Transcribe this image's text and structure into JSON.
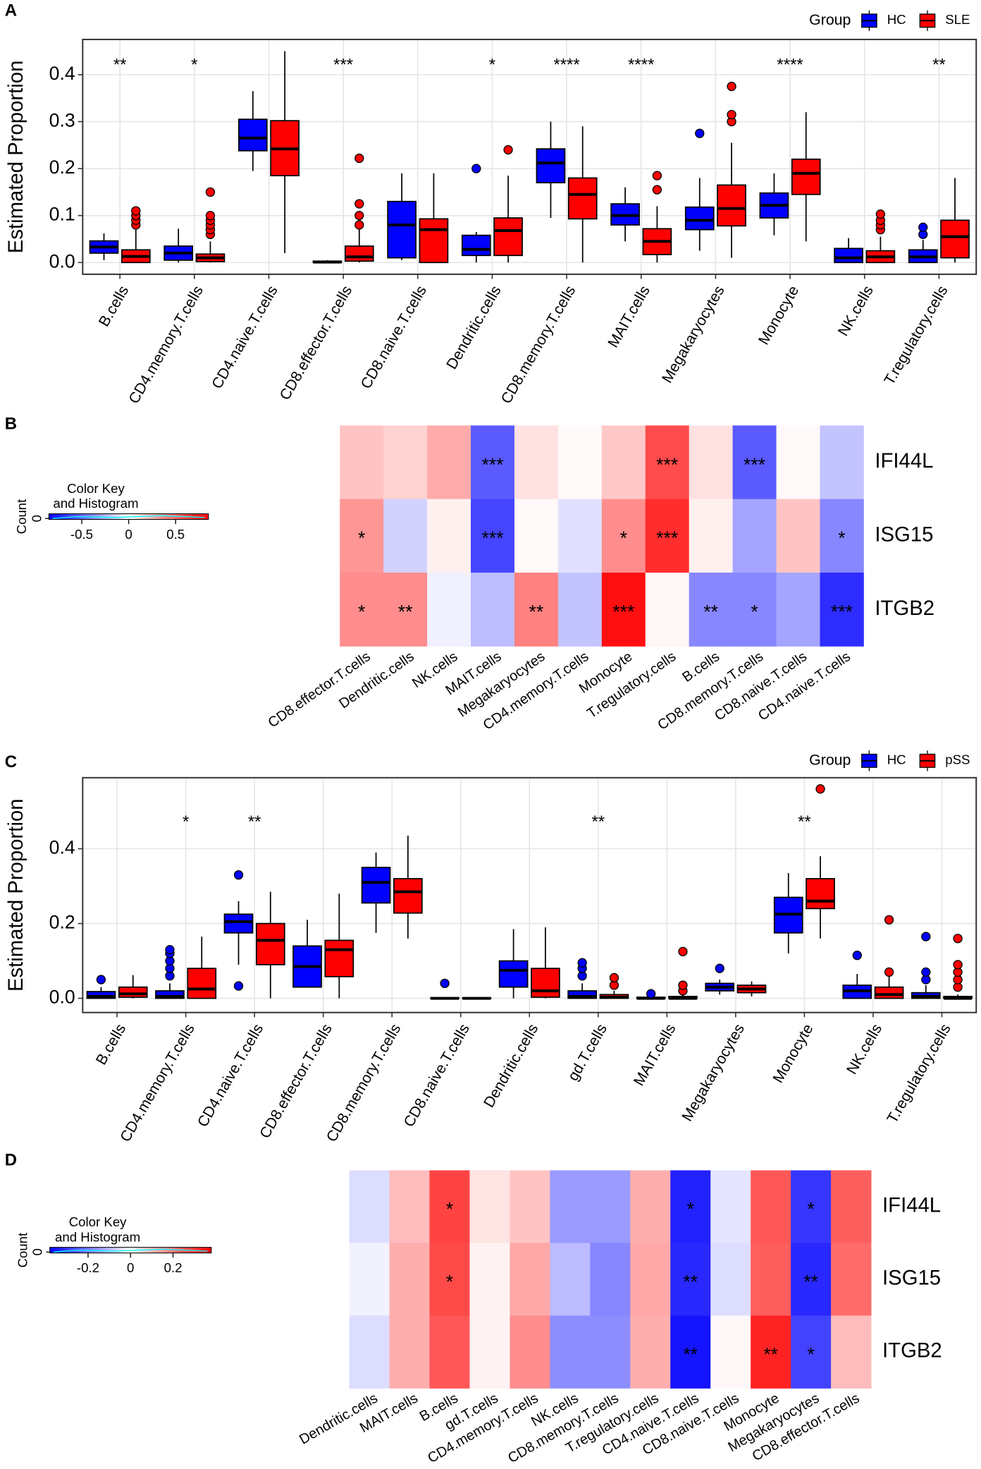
{
  "chart_data": [
    {
      "type": "box",
      "panel": "A",
      "ylabel": "Estimated Proportion",
      "legend_title": "Group",
      "legend": "top-right",
      "grid": true,
      "categories": [
        "B.cells",
        "CD4.memory.T.cells",
        "CD4.naive.T.cells",
        "CD8.effector.T.cells",
        "CD8.naive.T.cells",
        "Dendritic.cells",
        "CD8.memory.T.cells",
        "MAIT.cells",
        "Megakaryocytes",
        "Monocyte",
        "NK.cells",
        "T.regulatory.cells"
      ],
      "annotations": [
        "**",
        "*",
        null,
        "***",
        null,
        "*",
        "****",
        "****",
        null,
        "****",
        null,
        "**"
      ],
      "ylim": [
        -0.025,
        0.475
      ],
      "yticks": [
        {
          "value": 0,
          "label": "0.0"
        },
        0.1,
        0.2,
        0.3,
        0.4
      ],
      "series": [
        {
          "name": "HC",
          "color": "#0000ff",
          "stats": [
            [
              0.005,
              0.02,
              0.033,
              0.046,
              0.062
            ],
            [
              0,
              0.005,
              0.02,
              0.035,
              0.072
            ],
            [
              0.195,
              0.238,
              0.265,
              0.305,
              0.365
            ],
            [
              0,
              0,
              0.001,
              0.003,
              0.005
            ],
            [
              0.005,
              0.01,
              0.08,
              0.13,
              0.19
            ],
            [
              0,
              0.015,
              0.028,
              0.058,
              0.065
            ],
            [
              0.095,
              0.17,
              0.212,
              0.242,
              0.3
            ],
            [
              0.045,
              0.08,
              0.1,
              0.125,
              0.16
            ],
            [
              0.025,
              0.07,
              0.09,
              0.118,
              0.18
            ],
            [
              0.058,
              0.095,
              0.122,
              0.148,
              0.19
            ],
            [
              0,
              0,
              0.01,
              0.03,
              0.052
            ],
            [
              0,
              0,
              0.012,
              0.027,
              0.048
            ]
          ],
          "outliers": [
            [],
            [],
            [],
            [],
            [],
            [
              0.2
            ],
            [],
            [],
            [
              0.275
            ],
            [],
            [],
            [
              0.06,
              0.075
            ]
          ]
        },
        {
          "name": "SLE",
          "color": "#ff0000",
          "stats": [
            [
              0,
              0,
              0.013,
              0.027,
              0.07
            ],
            [
              0,
              0.002,
              0.01,
              0.018,
              0.045
            ],
            [
              0.02,
              0.185,
              0.242,
              0.302,
              0.45
            ],
            [
              0,
              0.003,
              0.012,
              0.035,
              0.07
            ],
            [
              0,
              0,
              0.07,
              0.093,
              0.19
            ],
            [
              0,
              0.015,
              0.068,
              0.095,
              0.185
            ],
            [
              0,
              0.093,
              0.145,
              0.18,
              0.29
            ],
            [
              0,
              0.017,
              0.045,
              0.072,
              0.12
            ],
            [
              0.01,
              0.078,
              0.115,
              0.165,
              0.255
            ],
            [
              0.045,
              0.145,
              0.19,
              0.22,
              0.32
            ],
            [
              0,
              0,
              0.012,
              0.025,
              0.055
            ],
            [
              0,
              0.01,
              0.055,
              0.09,
              0.18
            ]
          ],
          "outliers": [
            [
              0.08,
              0.09,
              0.1,
              0.11
            ],
            [
              0.06,
              0.07,
              0.08,
              0.09,
              0.1,
              0.15
            ],
            [],
            [
              0.08,
              0.1,
              0.125,
              0.222
            ],
            [],
            [
              0.24
            ],
            [],
            [
              0.155,
              0.185
            ],
            [
              0.3,
              0.315,
              0.375
            ],
            [],
            [
              0.07,
              0.08,
              0.09,
              0.103
            ],
            []
          ]
        }
      ]
    },
    {
      "type": "heatmap",
      "panel": "B",
      "rows": [
        "IFI44L",
        "ISG15",
        "ITGB2"
      ],
      "columns": [
        "CD8.effector.T.cells",
        "Dendritic.cells",
        "NK.cells",
        "MAIT.cells",
        "Megakaryocytes",
        "CD4.memory.T.cells",
        "Monocyte",
        "T.regulatory.cells",
        "B.cells",
        "CD8.memory.T.cells",
        "CD8.naive.T.cells",
        "CD4.naive.T.cells"
      ],
      "values": [
        [
          0.2,
          0.15,
          0.28,
          -0.55,
          0.1,
          0.02,
          0.18,
          0.6,
          0.1,
          -0.55,
          0.02,
          -0.2
        ],
        [
          0.35,
          -0.15,
          0.05,
          -0.62,
          0.02,
          -0.1,
          0.38,
          0.7,
          0.05,
          -0.3,
          0.2,
          -0.4
        ],
        [
          0.38,
          0.38,
          -0.05,
          -0.22,
          0.42,
          -0.2,
          0.8,
          0.03,
          -0.4,
          -0.4,
          -0.3,
          -0.7
        ]
      ],
      "stars": [
        [
          null,
          null,
          null,
          "***",
          null,
          null,
          null,
          "***",
          null,
          "***",
          null,
          null
        ],
        [
          "*",
          null,
          null,
          "***",
          null,
          null,
          "*",
          "***",
          null,
          null,
          null,
          "*"
        ],
        [
          "*",
          "**",
          null,
          null,
          "**",
          null,
          "***",
          null,
          "**",
          "*",
          null,
          "***"
        ]
      ],
      "colors": [
        "#0000ff",
        "#ffffff",
        "#ff0000"
      ],
      "clim": [
        -0.85,
        0.85
      ],
      "color_key": {
        "title": [
          "Color Key",
          "and Histogram"
        ],
        "ylabel": "Count",
        "yticks": [
          0
        ],
        "ticks": [
          -0.5,
          0,
          0.5
        ]
      }
    },
    {
      "type": "box",
      "panel": "C",
      "ylabel": "Estimated Proportion",
      "legend_title": "Group",
      "legend": "top-right",
      "grid": true,
      "categories": [
        "B.cells",
        "CD4.memory.T.cells",
        "CD4.naive.T.cells",
        "CD8.effector.T.cells",
        "CD8.memory.T.cells",
        "CD8.naive.T.cells",
        "Dendritic.cells",
        "gd.T.cells",
        "MAIT.cells",
        "Megakaryocytes",
        "Monocyte",
        "NK.cells",
        "T.regulatory.cells"
      ],
      "annotations": [
        null,
        "*",
        "**",
        null,
        null,
        null,
        null,
        "**",
        null,
        null,
        "**",
        null,
        null
      ],
      "ylim": [
        -0.038,
        0.59
      ],
      "yticks": [
        {
          "value": 0,
          "label": "0.0"
        },
        0.2,
        0.4
      ],
      "series": [
        {
          "name": "HC",
          "color": "#0000ff",
          "stats": [
            [
              0,
              0,
              0.005,
              0.018,
              0.03
            ],
            [
              0,
              0,
              0.005,
              0.02,
              0.04
            ],
            [
              0.09,
              0.175,
              0.205,
              0.225,
              0.26
            ],
            [
              0.03,
              0.03,
              0.085,
              0.14,
              0.21
            ],
            [
              0.175,
              0.255,
              0.31,
              0.35,
              0.39
            ],
            [
              0,
              0,
              0,
              0.001,
              0.002
            ],
            [
              0,
              0.03,
              0.075,
              0.1,
              0.185
            ],
            [
              0,
              0,
              0.005,
              0.02,
              0.04
            ],
            [
              0,
              0,
              0,
              0.003,
              0.006
            ],
            [
              0.01,
              0.02,
              0.03,
              0.04,
              0.05
            ],
            [
              0.12,
              0.175,
              0.225,
              0.27,
              0.335
            ],
            [
              0,
              0,
              0.02,
              0.035,
              0.065
            ],
            [
              0,
              0,
              0.005,
              0.015,
              0.035
            ]
          ],
          "outliers": [
            [
              0.05
            ],
            [
              0.06,
              0.08,
              0.1,
              0.12,
              0.13
            ],
            [
              0.033,
              0.33
            ],
            [],
            [],
            [
              0.04
            ],
            [],
            [
              0.06,
              0.08,
              0.095
            ],
            [
              0.012
            ],
            [
              0.08
            ],
            [],
            [
              0.115
            ],
            [
              0.05,
              0.07,
              0.165
            ]
          ]
        },
        {
          "name": "pSS",
          "color": "#ff0000",
          "stats": [
            [
              0,
              0.003,
              0.012,
              0.03,
              0.062
            ],
            [
              0,
              0,
              0.025,
              0.08,
              0.165
            ],
            [
              0,
              0.09,
              0.155,
              0.2,
              0.285
            ],
            [
              0,
              0.058,
              0.13,
              0.155,
              0.28
            ],
            [
              0.16,
              0.228,
              0.285,
              0.32,
              0.435
            ],
            [
              0,
              0,
              0,
              0.001,
              0.002
            ],
            [
              0,
              0.003,
              0.02,
              0.08,
              0.19
            ],
            [
              0,
              0,
              0.003,
              0.01,
              0.02
            ],
            [
              0,
              0,
              0,
              0.005,
              0.01
            ],
            [
              0.005,
              0.015,
              0.025,
              0.035,
              0.045
            ],
            [
              0.16,
              0.24,
              0.26,
              0.32,
              0.38
            ],
            [
              0,
              0,
              0.01,
              0.03,
              0.06
            ],
            [
              0,
              0,
              0,
              0.005,
              0.01
            ]
          ],
          "outliers": [
            [],
            [],
            [],
            [],
            [],
            [],
            [],
            [
              0.035,
              0.055
            ],
            [
              0.02,
              0.035,
              0.125
            ],
            [],
            [
              0.56
            ],
            [
              0.07,
              0.21
            ],
            [
              0.03,
              0.05,
              0.07,
              0.09,
              0.16
            ]
          ]
        }
      ]
    },
    {
      "type": "heatmap",
      "panel": "D",
      "rows": [
        "IFI44L",
        "ISG15",
        "ITGB2"
      ],
      "columns": [
        "Dendritic.cells",
        "MAIT.cells",
        "B.cells",
        "gd.T.cells",
        "CD4.memory.T.cells",
        "NK.cells",
        "CD8.memory.T.cells",
        "T.regulatory.cells",
        "CD4.naive.T.cells",
        "CD8.naive.T.cells",
        "Monocyte",
        "Megakaryocytes",
        "CD8.effector.T.cells"
      ],
      "values": [
        [
          -0.05,
          0.1,
          0.28,
          0.04,
          0.09,
          -0.15,
          -0.15,
          0.12,
          -0.33,
          -0.04,
          0.25,
          -0.3,
          0.24
        ],
        [
          -0.02,
          0.12,
          0.27,
          0.02,
          0.13,
          -0.1,
          -0.18,
          0.13,
          -0.32,
          -0.05,
          0.24,
          -0.32,
          0.22
        ],
        [
          -0.05,
          0.12,
          0.25,
          0.02,
          0.17,
          -0.17,
          -0.17,
          0.12,
          -0.35,
          0.01,
          0.33,
          -0.28,
          0.1
        ]
      ],
      "stars": [
        [
          null,
          null,
          "*",
          null,
          null,
          null,
          null,
          null,
          "*",
          null,
          null,
          "*",
          null
        ],
        [
          null,
          null,
          "*",
          null,
          null,
          null,
          null,
          null,
          "**",
          null,
          null,
          "**",
          null
        ],
        [
          null,
          null,
          null,
          null,
          null,
          null,
          null,
          null,
          "**",
          null,
          "**",
          "*",
          null
        ]
      ],
      "colors": [
        "#0000ff",
        "#ffffff",
        "#ff0000"
      ],
      "clim": [
        -0.38,
        0.38
      ],
      "color_key": {
        "title": [
          "Color Key",
          "and Histogram"
        ],
        "ylabel": "Count",
        "yticks": [
          0
        ],
        "ticks": [
          -0.2,
          0,
          0.2
        ]
      }
    }
  ]
}
